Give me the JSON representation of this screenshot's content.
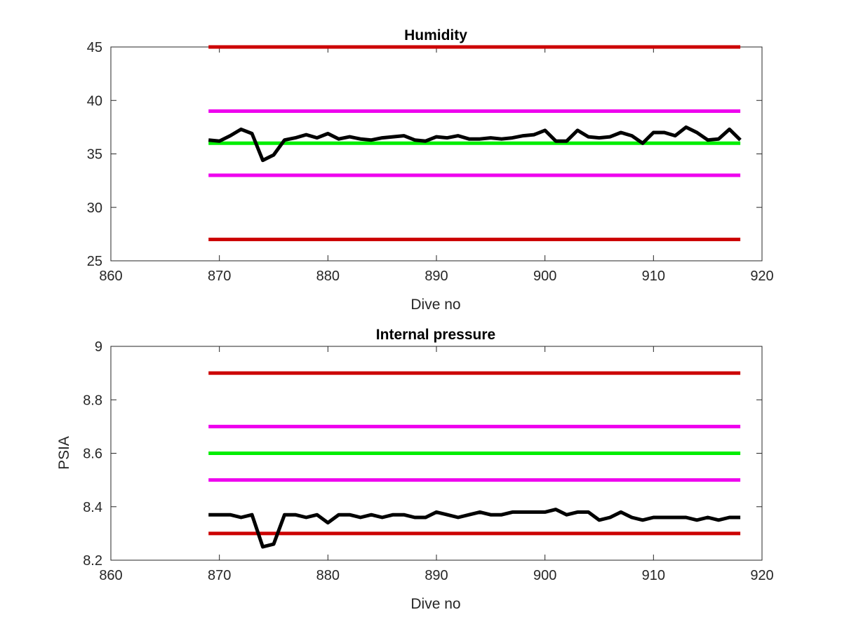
{
  "chart_data": [
    {
      "type": "line",
      "title": "Humidity",
      "xlabel": "Dive no",
      "ylabel": "",
      "xlim": [
        860,
        920
      ],
      "ylim": [
        25,
        45
      ],
      "xticks": [
        860,
        870,
        880,
        890,
        900,
        910,
        920
      ],
      "yticks": [
        25,
        30,
        35,
        40,
        45
      ],
      "grid": false,
      "series": [
        {
          "color": "#cc0000",
          "x": [
            869,
            918
          ],
          "y": [
            45,
            45
          ]
        },
        {
          "color": "#ee00ee",
          "x": [
            869,
            918
          ],
          "y": [
            39,
            39
          ]
        },
        {
          "color": "#00ee00",
          "x": [
            869,
            918
          ],
          "y": [
            36,
            36
          ]
        },
        {
          "color": "#ee00ee",
          "x": [
            869,
            918
          ],
          "y": [
            33,
            33
          ]
        },
        {
          "color": "#cc0000",
          "x": [
            869,
            918
          ],
          "y": [
            27,
            27
          ]
        },
        {
          "color": "#000000",
          "x": [
            869,
            870,
            871,
            872,
            873,
            874,
            875,
            876,
            877,
            878,
            879,
            880,
            881,
            882,
            883,
            884,
            885,
            886,
            887,
            888,
            889,
            890,
            891,
            892,
            893,
            894,
            895,
            896,
            897,
            898,
            899,
            900,
            901,
            902,
            903,
            904,
            905,
            906,
            907,
            908,
            909,
            910,
            911,
            912,
            913,
            914,
            915,
            916,
            917,
            918
          ],
          "y": [
            36.3,
            36.2,
            36.7,
            37.3,
            36.9,
            34.4,
            34.9,
            36.3,
            36.5,
            36.8,
            36.5,
            36.9,
            36.4,
            36.6,
            36.4,
            36.3,
            36.5,
            36.6,
            36.7,
            36.3,
            36.2,
            36.6,
            36.5,
            36.7,
            36.4,
            36.4,
            36.5,
            36.4,
            36.5,
            36.7,
            36.8,
            37.2,
            36.2,
            36.2,
            37.2,
            36.6,
            36.5,
            36.6,
            37.0,
            36.7,
            36.0,
            37.0,
            37.0,
            36.7,
            37.5,
            37.0,
            36.3,
            36.4,
            37.3,
            36.3
          ]
        }
      ]
    },
    {
      "type": "line",
      "title": "Internal pressure",
      "xlabel": "Dive no",
      "ylabel": "PSIA",
      "xlim": [
        860,
        920
      ],
      "ylim": [
        8.2,
        9
      ],
      "xticks": [
        860,
        870,
        880,
        890,
        900,
        910,
        920
      ],
      "yticks": [
        8.2,
        8.4,
        8.6,
        8.8,
        9
      ],
      "grid": false,
      "series": [
        {
          "color": "#cc0000",
          "x": [
            869,
            918
          ],
          "y": [
            8.9,
            8.9
          ]
        },
        {
          "color": "#ee00ee",
          "x": [
            869,
            918
          ],
          "y": [
            8.7,
            8.7
          ]
        },
        {
          "color": "#00ee00",
          "x": [
            869,
            918
          ],
          "y": [
            8.6,
            8.6
          ]
        },
        {
          "color": "#ee00ee",
          "x": [
            869,
            918
          ],
          "y": [
            8.5,
            8.5
          ]
        },
        {
          "color": "#cc0000",
          "x": [
            869,
            918
          ],
          "y": [
            8.3,
            8.3
          ]
        },
        {
          "color": "#000000",
          "x": [
            869,
            870,
            871,
            872,
            873,
            874,
            875,
            876,
            877,
            878,
            879,
            880,
            881,
            882,
            883,
            884,
            885,
            886,
            887,
            888,
            889,
            890,
            891,
            892,
            893,
            894,
            895,
            896,
            897,
            898,
            899,
            900,
            901,
            902,
            903,
            904,
            905,
            906,
            907,
            908,
            909,
            910,
            911,
            912,
            913,
            914,
            915,
            916,
            917,
            918
          ],
          "y": [
            8.37,
            8.37,
            8.37,
            8.36,
            8.37,
            8.25,
            8.26,
            8.37,
            8.37,
            8.36,
            8.37,
            8.34,
            8.37,
            8.37,
            8.36,
            8.37,
            8.36,
            8.37,
            8.37,
            8.36,
            8.36,
            8.38,
            8.37,
            8.36,
            8.37,
            8.38,
            8.37,
            8.37,
            8.38,
            8.38,
            8.38,
            8.38,
            8.39,
            8.37,
            8.38,
            8.38,
            8.35,
            8.36,
            8.38,
            8.36,
            8.35,
            8.36,
            8.36,
            8.36,
            8.36,
            8.35,
            8.36,
            8.35,
            8.36,
            8.36
          ]
        }
      ]
    }
  ]
}
